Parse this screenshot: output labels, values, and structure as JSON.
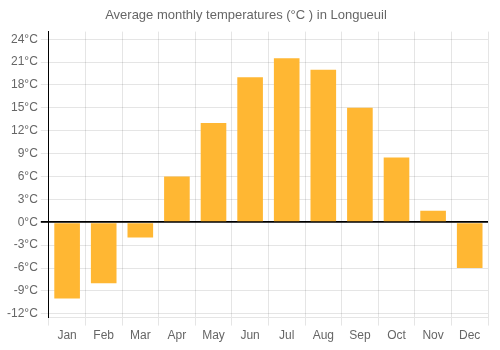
{
  "chart_data": {
    "type": "bar",
    "title": "Average monthly temperatures (°C ) in Longueuil",
    "categories": [
      "Jan",
      "Feb",
      "Mar",
      "Apr",
      "May",
      "Jun",
      "Jul",
      "Aug",
      "Sep",
      "Oct",
      "Nov",
      "Dec"
    ],
    "values": [
      -10,
      -8,
      -2,
      6,
      13,
      19,
      21.5,
      20,
      15,
      8.5,
      1.5,
      -6
    ],
    "color": "#FFB733",
    "ylim": [
      -12.5,
      25
    ],
    "yticks": [
      {
        "value": -12,
        "label": "-12°C"
      },
      {
        "value": -9,
        "label": "-9°C"
      },
      {
        "value": -6,
        "label": "-6°C"
      },
      {
        "value": -3,
        "label": "-3°C"
      },
      {
        "value": 0,
        "label": "0°C"
      },
      {
        "value": 3,
        "label": "3°C"
      },
      {
        "value": 6,
        "label": "6°C"
      },
      {
        "value": 9,
        "label": "9°C"
      },
      {
        "value": 12,
        "label": "12°C"
      },
      {
        "value": 15,
        "label": "15°C"
      },
      {
        "value": 18,
        "label": "18°C"
      },
      {
        "value": 21,
        "label": "21°C"
      },
      {
        "value": 24,
        "label": "24°C"
      }
    ],
    "grid": true
  }
}
